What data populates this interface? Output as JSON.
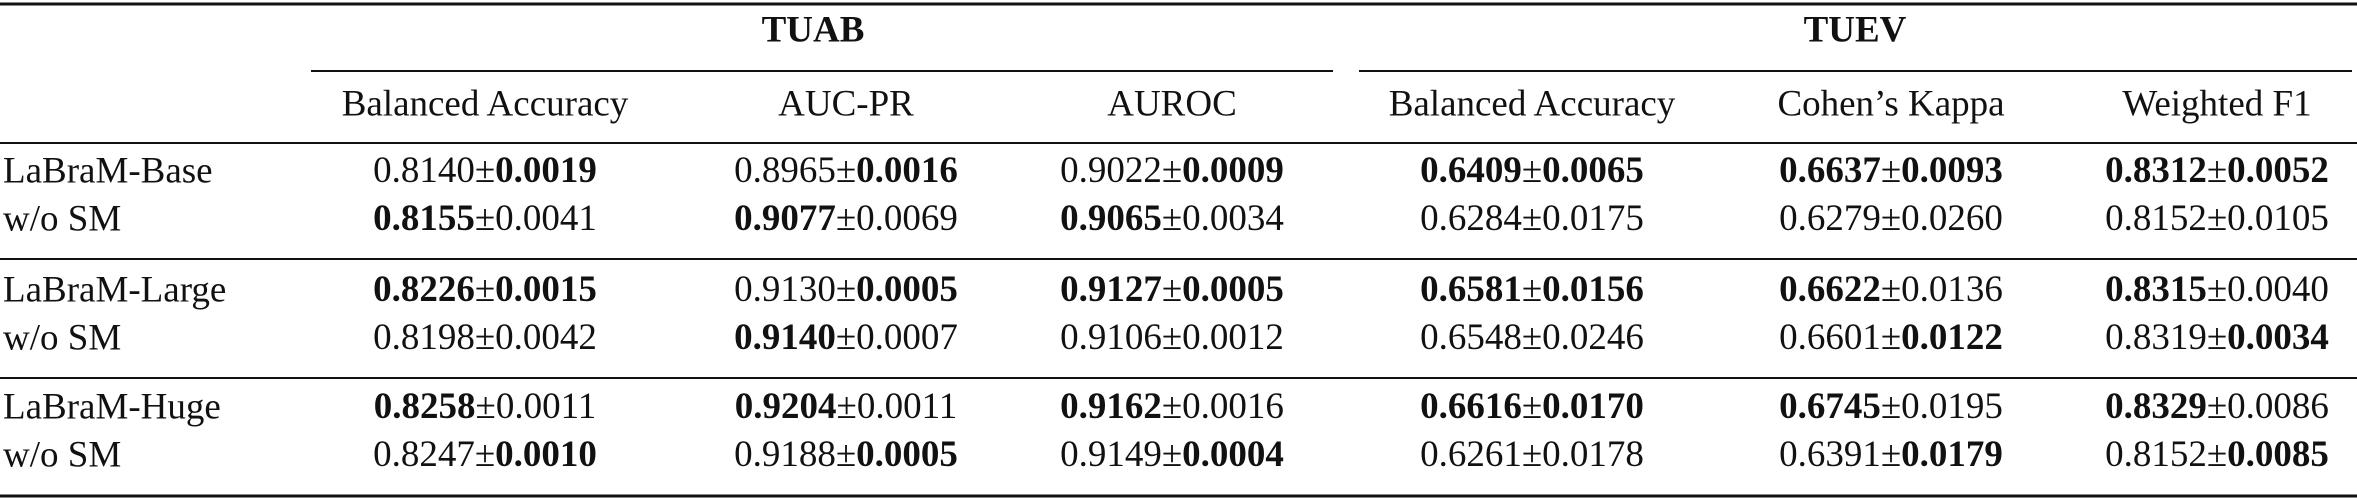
{
  "header": {
    "groups": [
      {
        "label": "TUAB",
        "columns": [
          "Balanced Accuracy",
          "AUC-PR",
          "AUROC"
        ]
      },
      {
        "label": "TUEV",
        "columns": [
          "Balanced Accuracy",
          "Cohen’s Kappa",
          "Weighted F1"
        ]
      }
    ]
  },
  "table": {
    "separator": "±",
    "rows": [
      {
        "label": "LaBraM-Base",
        "cells": [
          {
            "mean": "0.8140",
            "std": "0.0019",
            "bold_mean": false,
            "bold_std": true
          },
          {
            "mean": "0.8965",
            "std": "0.0016",
            "bold_mean": false,
            "bold_std": true
          },
          {
            "mean": "0.9022",
            "std": "0.0009",
            "bold_mean": false,
            "bold_std": true
          },
          {
            "mean": "0.6409",
            "std": "0.0065",
            "bold_mean": true,
            "bold_std": true
          },
          {
            "mean": "0.6637",
            "std": "0.0093",
            "bold_mean": true,
            "bold_std": true
          },
          {
            "mean": "0.8312",
            "std": "0.0052",
            "bold_mean": true,
            "bold_std": true
          }
        ]
      },
      {
        "label": "w/o SM",
        "cells": [
          {
            "mean": "0.8155",
            "std": "0.0041",
            "bold_mean": true,
            "bold_std": false
          },
          {
            "mean": "0.9077",
            "std": "0.0069",
            "bold_mean": true,
            "bold_std": false
          },
          {
            "mean": "0.9065",
            "std": "0.0034",
            "bold_mean": true,
            "bold_std": false
          },
          {
            "mean": "0.6284",
            "std": "0.0175",
            "bold_mean": false,
            "bold_std": false
          },
          {
            "mean": "0.6279",
            "std": "0.0260",
            "bold_mean": false,
            "bold_std": false
          },
          {
            "mean": "0.8152",
            "std": "0.0105",
            "bold_mean": false,
            "bold_std": false
          }
        ]
      },
      {
        "label": "LaBraM-Large",
        "cells": [
          {
            "mean": "0.8226",
            "std": "0.0015",
            "bold_mean": true,
            "bold_std": true
          },
          {
            "mean": "0.9130",
            "std": "0.0005",
            "bold_mean": false,
            "bold_std": true
          },
          {
            "mean": "0.9127",
            "std": "0.0005",
            "bold_mean": true,
            "bold_std": true
          },
          {
            "mean": "0.6581",
            "std": "0.0156",
            "bold_mean": true,
            "bold_std": true
          },
          {
            "mean": "0.6622",
            "std": "0.0136",
            "bold_mean": true,
            "bold_std": false
          },
          {
            "mean": "0.8315",
            "std": "0.0040",
            "bold_mean": true,
            "bold_std": false
          }
        ]
      },
      {
        "label": "w/o SM",
        "cells": [
          {
            "mean": "0.8198",
            "std": "0.0042",
            "bold_mean": false,
            "bold_std": false
          },
          {
            "mean": "0.9140",
            "std": "0.0007",
            "bold_mean": true,
            "bold_std": false
          },
          {
            "mean": "0.9106",
            "std": "0.0012",
            "bold_mean": false,
            "bold_std": false
          },
          {
            "mean": "0.6548",
            "std": "0.0246",
            "bold_mean": false,
            "bold_std": false
          },
          {
            "mean": "0.6601",
            "std": "0.0122",
            "bold_mean": false,
            "bold_std": true
          },
          {
            "mean": "0.8319",
            "std": "0.0034",
            "bold_mean": false,
            "bold_std": true
          }
        ]
      },
      {
        "label": "LaBraM-Huge",
        "cells": [
          {
            "mean": "0.8258",
            "std": "0.0011",
            "bold_mean": true,
            "bold_std": false
          },
          {
            "mean": "0.9204",
            "std": "0.0011",
            "bold_mean": true,
            "bold_std": false
          },
          {
            "mean": "0.9162",
            "std": "0.0016",
            "bold_mean": true,
            "bold_std": false
          },
          {
            "mean": "0.6616",
            "std": "0.0170",
            "bold_mean": true,
            "bold_std": true
          },
          {
            "mean": "0.6745",
            "std": "0.0195",
            "bold_mean": true,
            "bold_std": false
          },
          {
            "mean": "0.8329",
            "std": "0.0086",
            "bold_mean": true,
            "bold_std": false
          }
        ]
      },
      {
        "label": "w/o SM",
        "cells": [
          {
            "mean": "0.8247",
            "std": "0.0010",
            "bold_mean": false,
            "bold_std": true
          },
          {
            "mean": "0.9188",
            "std": "0.0005",
            "bold_mean": false,
            "bold_std": true
          },
          {
            "mean": "0.9149",
            "std": "0.0004",
            "bold_mean": false,
            "bold_std": true
          },
          {
            "mean": "0.6261",
            "std": "0.0178",
            "bold_mean": false,
            "bold_std": false
          },
          {
            "mean": "0.6391",
            "std": "0.0179",
            "bold_mean": false,
            "bold_std": true
          },
          {
            "mean": "0.8152",
            "std": "0.0085",
            "bold_mean": false,
            "bold_std": true
          }
        ]
      }
    ]
  }
}
